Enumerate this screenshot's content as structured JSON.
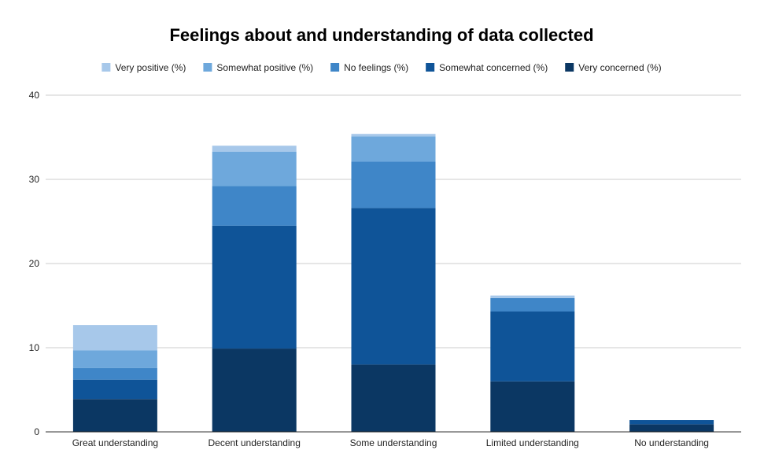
{
  "chart_data": {
    "type": "bar",
    "stacked": true,
    "title": "Feelings about and understanding of data collected",
    "xlabel": "",
    "ylabel": "",
    "ylim": [
      0,
      40
    ],
    "yticks": [
      0,
      10,
      20,
      30,
      40
    ],
    "grid": true,
    "legend_position": "top-center",
    "categories": [
      "Great understanding",
      "Decent understanding",
      "Some understanding",
      "Limited understanding",
      "No understanding"
    ],
    "series": [
      {
        "name": "Very concerned (%)",
        "color": "#0b3763",
        "values": [
          3.9,
          9.9,
          8.0,
          6.0,
          0.9
        ]
      },
      {
        "name": "Somewhat concerned (%)",
        "color": "#0f5498",
        "values": [
          2.3,
          14.6,
          18.6,
          8.3,
          0.5
        ]
      },
      {
        "name": "No feelings (%)",
        "color": "#3f86c8",
        "values": [
          1.4,
          4.7,
          5.5,
          1.6,
          0.0
        ]
      },
      {
        "name": "Somewhat positive (%)",
        "color": "#6ea8dc",
        "values": [
          2.1,
          4.1,
          3.0,
          0.0,
          0.0
        ]
      },
      {
        "name": "Very positive (%)",
        "color": "#a7c8ea",
        "values": [
          3.0,
          0.7,
          0.3,
          0.3,
          0.0
        ]
      }
    ],
    "legend_order": [
      "Very positive (%)",
      "Somewhat positive (%)",
      "No feelings (%)",
      "Somewhat concerned (%)",
      "Very concerned (%)"
    ]
  }
}
